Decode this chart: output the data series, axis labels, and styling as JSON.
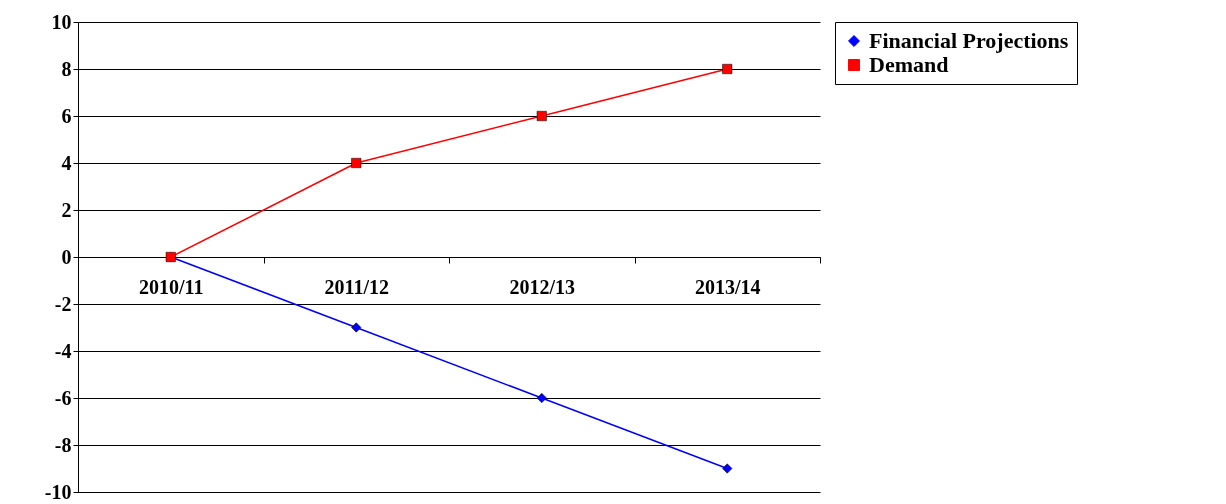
{
  "chart_data": {
    "type": "line",
    "categories": [
      "2010/11",
      "2011/12",
      "2012/13",
      "2013/14"
    ],
    "series": [
      {
        "name": "Financial Projections",
        "color": "#0000ff",
        "marker": "diamond",
        "values": [
          0,
          -3,
          -6,
          -9
        ]
      },
      {
        "name": "Demand",
        "color": "#ff0000",
        "marker": "square",
        "values": [
          0,
          4,
          6,
          8
        ]
      }
    ],
    "ylim": [
      -10,
      10
    ],
    "yticks": [
      -10,
      -8,
      -6,
      -4,
      -2,
      0,
      2,
      4,
      6,
      8,
      10
    ],
    "grid": "y",
    "legend": "right"
  }
}
